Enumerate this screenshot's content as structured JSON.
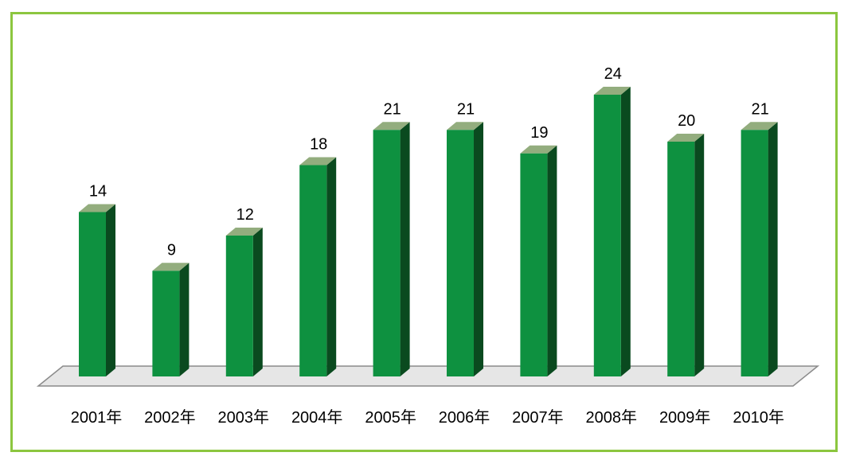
{
  "chart_data": {
    "type": "bar",
    "style": "3d-column",
    "categories": [
      "2001年",
      "2002年",
      "2003年",
      "2004年",
      "2005年",
      "2006年",
      "2007年",
      "2008年",
      "2009年",
      "2010年"
    ],
    "values": [
      14,
      9,
      12,
      18,
      21,
      21,
      19,
      24,
      20,
      21
    ],
    "title": "",
    "xlabel": "",
    "ylabel": "",
    "ylim": [
      0,
      24
    ],
    "grid": false,
    "legend": "none",
    "data_labels": true
  },
  "colors": {
    "frame_border": "#8cc63f",
    "bar_front": "#0e9140",
    "bar_side": "#0a4a1f",
    "bar_top": "#93ad7e",
    "floor_fill": "#e6e6e6",
    "floor_stroke": "#8a8a8a"
  }
}
